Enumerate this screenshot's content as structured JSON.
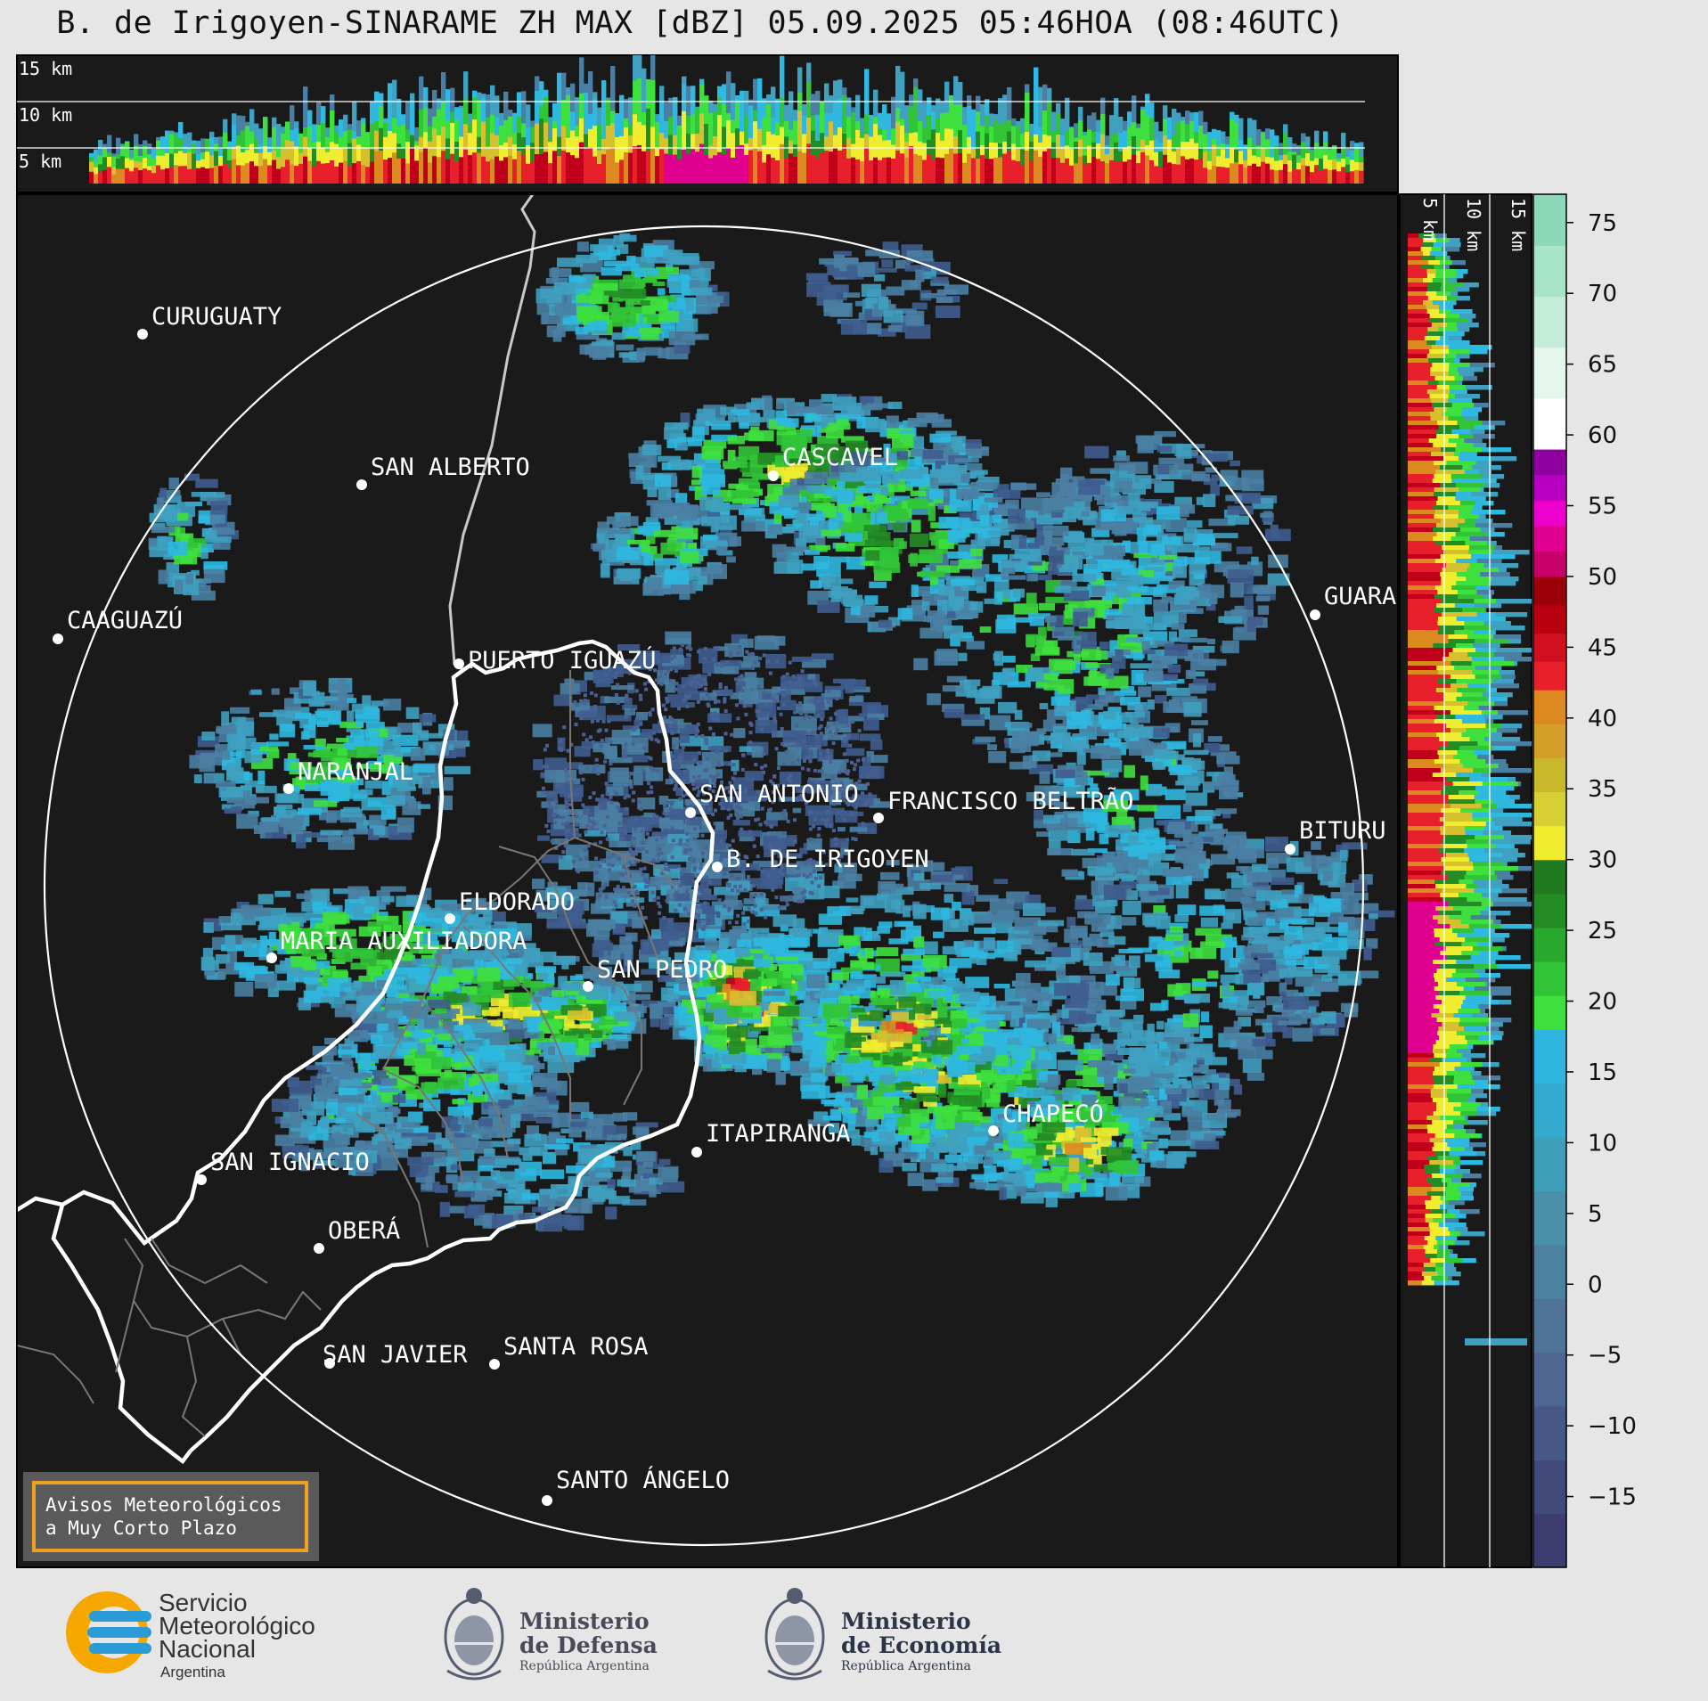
{
  "title": "B. de Irigoyen-SINARAME ZH MAX [dBZ] 05.09.2025 05:46HOA (08:46UTC)",
  "top_panel": {
    "height_labels": [
      "15 km",
      "10 km",
      "5 km"
    ]
  },
  "right_panel": {
    "height_labels": [
      "5 km",
      "10 km",
      "15 km"
    ]
  },
  "colorbar": {
    "ticks": [
      "75",
      "70",
      "65",
      "60",
      "55",
      "50",
      "45",
      "40",
      "35",
      "30",
      "25",
      "20",
      "15",
      "10",
      "5",
      "0",
      "−5",
      "−10",
      "−15"
    ],
    "bands": [
      {
        "from": -20,
        "to": 18,
        "colors": [
          "#3c3c6e",
          "#424a7a",
          "#485886",
          "#4e6690",
          "#4f7497",
          "#4d829f",
          "#4990a8",
          "#3f9fb8",
          "#33aace",
          "#2fb6df"
        ]
      },
      {
        "from": 18,
        "to": 30,
        "colors": [
          "#3ee03e",
          "#31c437",
          "#29a82e",
          "#238c25",
          "#1f7a20"
        ]
      },
      {
        "from": 30,
        "to": 42,
        "colors": [
          "#f0ec30",
          "#d6d034",
          "#c8b82c",
          "#d4a028",
          "#dc8a20"
        ]
      },
      {
        "from": 42,
        "to": 50,
        "colors": [
          "#e8202c",
          "#d0101e",
          "#b80010",
          "#9a0008"
        ]
      },
      {
        "from": 50,
        "to": 59,
        "colors": [
          "#c8006a",
          "#e00090",
          "#ee00cc",
          "#b800c0",
          "#8e00a0"
        ]
      },
      {
        "from": 59,
        "to": 77,
        "colors": [
          "#ffffff",
          "#e4f6ec",
          "#c4ecd8",
          "#a8e4c8",
          "#8cd8b8"
        ]
      }
    ]
  },
  "cities": [
    {
      "name": "CURUGUATY"
    },
    {
      "name": "SAN ALBERTO"
    },
    {
      "name": "CAAGUAZÚ"
    },
    {
      "name": "CASCAVEL"
    },
    {
      "name": "GUARA"
    },
    {
      "name": "PUERTO IGUAZÚ"
    },
    {
      "name": "NARANJAL"
    },
    {
      "name": "SAN ANTONIO"
    },
    {
      "name": "FRANCISCO BELTRÃO"
    },
    {
      "name": "BITURU"
    },
    {
      "name": "B. DE IRIGOYEN"
    },
    {
      "name": "ELDORADO"
    },
    {
      "name": "MARIA AUXILIADORA"
    },
    {
      "name": "SAN PEDRO"
    },
    {
      "name": "CHAPECÓ"
    },
    {
      "name": "ITAPIRANGA"
    },
    {
      "name": "SAN IGNACIO"
    },
    {
      "name": "OBERÁ"
    },
    {
      "name": "SAN JAVIER"
    },
    {
      "name": "SANTA ROSA"
    },
    {
      "name": "SANTO ÁNGELO"
    }
  ],
  "notice": {
    "line1": "Avisos Meteorológicos",
    "line2": "a Muy Corto Plazo",
    "border_color": "#f0a020"
  },
  "logos": {
    "smn": {
      "line1": "Servicio",
      "line2": "Meteorológico",
      "line3": "Nacional",
      "line4": "Argentina",
      "icon": "smn-logo-icon"
    },
    "defensa": {
      "line1": "Ministerio",
      "line2": "de Defensa",
      "line3": "República Argentina",
      "icon": "national-seal-icon"
    },
    "economia": {
      "line1": "Ministerio",
      "line2": "de Economía",
      "line3": "República Argentina",
      "icon": "national-seal-icon"
    }
  }
}
